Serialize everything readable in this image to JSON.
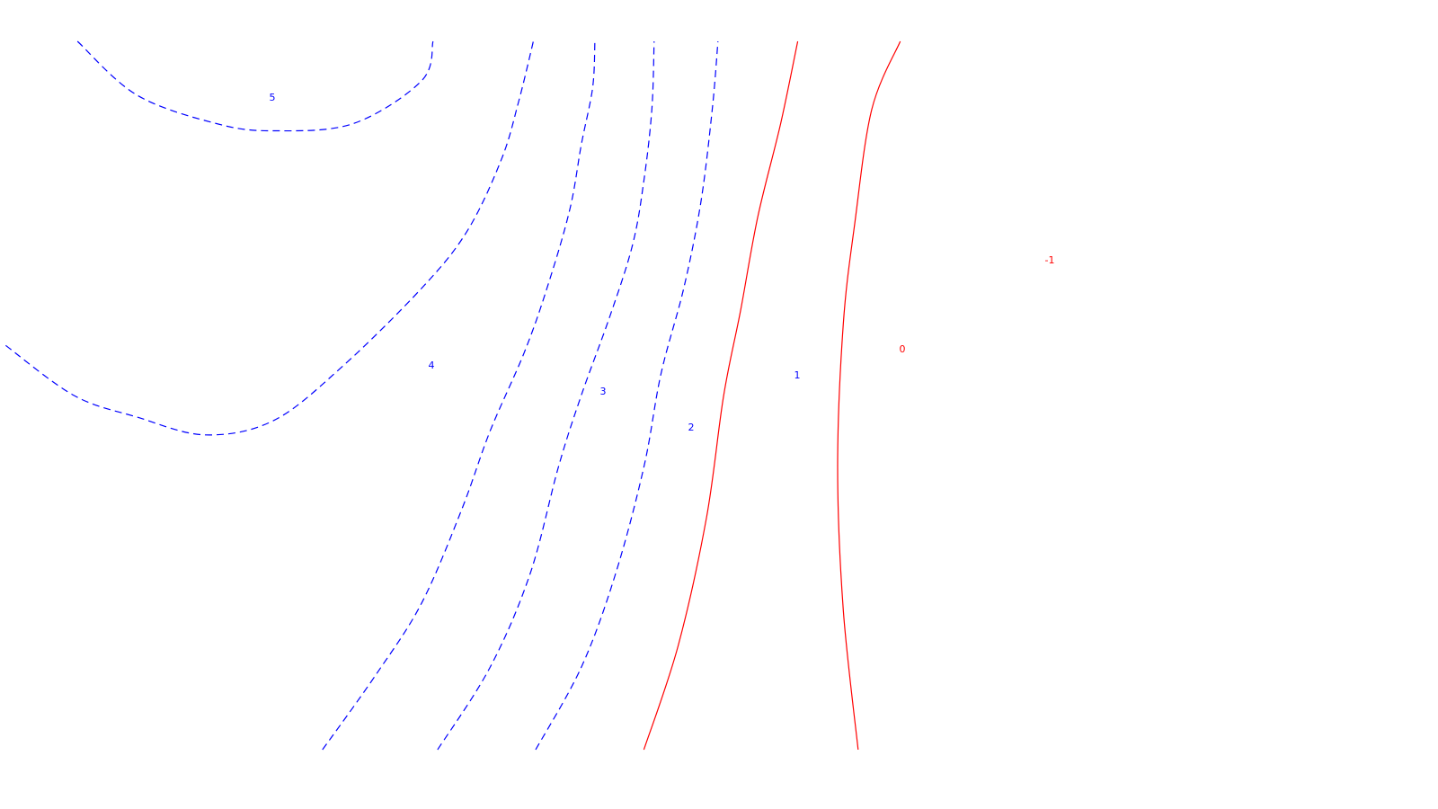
{
  "chart_data": {
    "type": "contour",
    "x": [
      0,
      1
    ],
    "y": [
      0,
      1
    ],
    "levels": [
      {
        "value": 5,
        "label": "5",
        "color": "#0000ff",
        "linestyle": "dashed",
        "points": [
          [
            0.068,
            0.995
          ],
          [
            0.12,
            0.92
          ],
          [
            0.19,
            0.88
          ],
          [
            0.24,
            0.87
          ],
          [
            0.31,
            0.88
          ],
          [
            0.37,
            0.94
          ],
          [
            0.38,
            0.995
          ]
        ]
      },
      {
        "value": 4,
        "label": "4",
        "color": "#0000ff",
        "linestyle": "dashed",
        "points": [
          [
            0.005,
            0.57
          ],
          [
            0.065,
            0.5
          ],
          [
            0.12,
            0.47
          ],
          [
            0.18,
            0.445
          ],
          [
            0.24,
            0.465
          ],
          [
            0.3,
            0.54
          ],
          [
            0.37,
            0.65
          ],
          [
            0.41,
            0.73
          ],
          [
            0.44,
            0.83
          ],
          [
            0.455,
            0.91
          ],
          [
            0.468,
            0.995
          ]
        ]
      },
      {
        "value": 3,
        "label": "3",
        "color": "#0000ff",
        "linestyle": "dashed",
        "points": [
          [
            0.283,
            0.005
          ],
          [
            0.33,
            0.11
          ],
          [
            0.37,
            0.21
          ],
          [
            0.405,
            0.34
          ],
          [
            0.43,
            0.45
          ],
          [
            0.46,
            0.56
          ],
          [
            0.48,
            0.65
          ],
          [
            0.5,
            0.76
          ],
          [
            0.51,
            0.85
          ],
          [
            0.52,
            0.93
          ],
          [
            0.522,
            0.995
          ]
        ]
      },
      {
        "value": 2,
        "label": "2",
        "color": "#0000ff",
        "linestyle": "dashed",
        "points": [
          [
            0.384,
            0.005
          ],
          [
            0.43,
            0.12
          ],
          [
            0.465,
            0.25
          ],
          [
            0.49,
            0.4
          ],
          [
            0.51,
            0.5
          ],
          [
            0.535,
            0.61
          ],
          [
            0.555,
            0.71
          ],
          [
            0.565,
            0.8
          ],
          [
            0.572,
            0.9
          ],
          [
            0.574,
            0.995
          ]
        ]
      },
      {
        "value": 1,
        "label": "1",
        "color": "#0000ff",
        "linestyle": "dashed",
        "points": [
          [
            0.47,
            0.005
          ],
          [
            0.51,
            0.12
          ],
          [
            0.54,
            0.25
          ],
          [
            0.565,
            0.4
          ],
          [
            0.58,
            0.53
          ],
          [
            0.6,
            0.65
          ],
          [
            0.615,
            0.77
          ],
          [
            0.625,
            0.9
          ],
          [
            0.63,
            0.995
          ]
        ]
      },
      {
        "value": 0,
        "label": "0",
        "color": "#ff0000",
        "linestyle": "solid",
        "points": [
          [
            0.565,
            0.005
          ],
          [
            0.595,
            0.15
          ],
          [
            0.62,
            0.33
          ],
          [
            0.635,
            0.5
          ],
          [
            0.65,
            0.62
          ],
          [
            0.665,
            0.75
          ],
          [
            0.685,
            0.88
          ],
          [
            0.7,
            0.995
          ]
        ]
      },
      {
        "value": -1,
        "label": "-1",
        "color": "#ff0000",
        "linestyle": "solid",
        "points": [
          [
            0.753,
            0.005
          ],
          [
            0.74,
            0.2
          ],
          [
            0.735,
            0.4
          ],
          [
            0.74,
            0.6
          ],
          [
            0.75,
            0.74
          ],
          [
            0.765,
            0.9
          ],
          [
            0.79,
            0.995
          ]
        ]
      }
    ]
  }
}
